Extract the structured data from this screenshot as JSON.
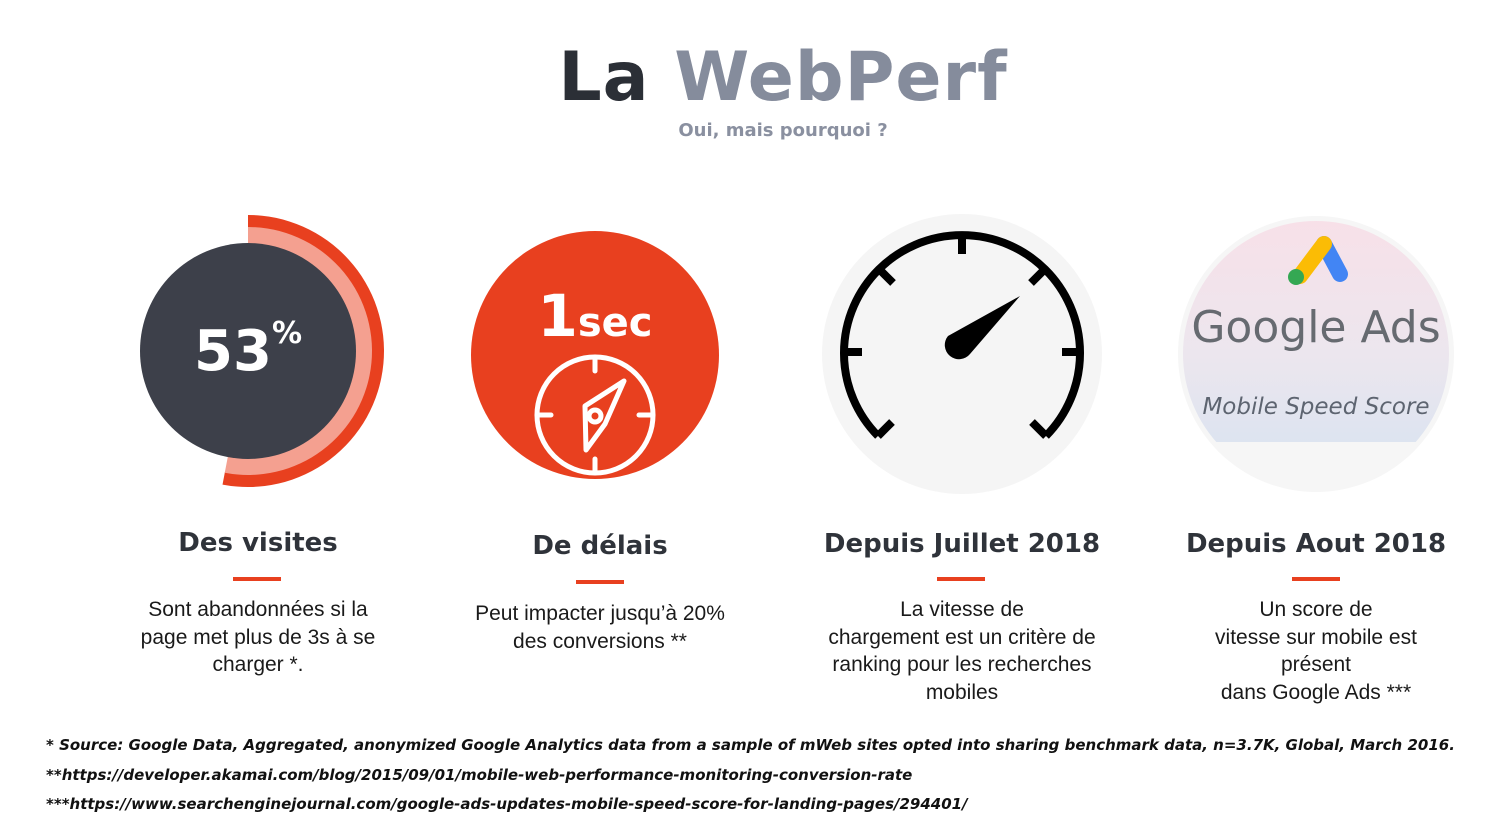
{
  "header": {
    "title_part1": "La",
    "title_part2": "WebPerf",
    "subtitle": "Oui, mais pourquoi ?"
  },
  "colors": {
    "accent_red": "#e8401f",
    "dark_disc": "#3d404a",
    "light_ring": "#f4a090",
    "title_grey": "#858c9c"
  },
  "stats": [
    {
      "icon": "donut-53-percent-icon",
      "value": "53",
      "unit": "%",
      "fill_fraction": 0.53,
      "heading": "Des visites",
      "body_lines": [
        "Sont abandonnées si la",
        "page met plus de 3s à se",
        "charger *."
      ]
    },
    {
      "icon": "compass-icon",
      "value": "1",
      "unit": "sec",
      "heading": "De délais",
      "body_lines": [
        "Peut impacter jusqu’à 20%",
        "des conversions **"
      ]
    },
    {
      "icon": "speedometer-icon",
      "heading": "Depuis Juillet 2018",
      "body_lines": [
        "La vitesse de",
        "chargement est un critère de",
        "ranking pour les recherches",
        "mobiles"
      ]
    },
    {
      "icon": "google-ads-logo-icon",
      "logo_text": "Google Ads",
      "badge_caption": "Mobile Speed Score",
      "heading": "Depuis Aout 2018",
      "body_lines": [
        "Un score de",
        "vitesse sur mobile est",
        "présent",
        "dans Google Ads ***"
      ]
    }
  ],
  "footnotes": [
    "* Source: Google Data, Aggregated, anonymized Google Analytics data from a sample of mWeb sites opted into sharing benchmark data, n=3.7K, Global, March 2016.",
    "**https://developer.akamai.com/blog/2015/09/01/mobile-web-performance-monitoring-conversion-rate",
    "***https://www.searchenginejournal.com/google-ads-updates-mobile-speed-score-for-landing-pages/294401/"
  ]
}
